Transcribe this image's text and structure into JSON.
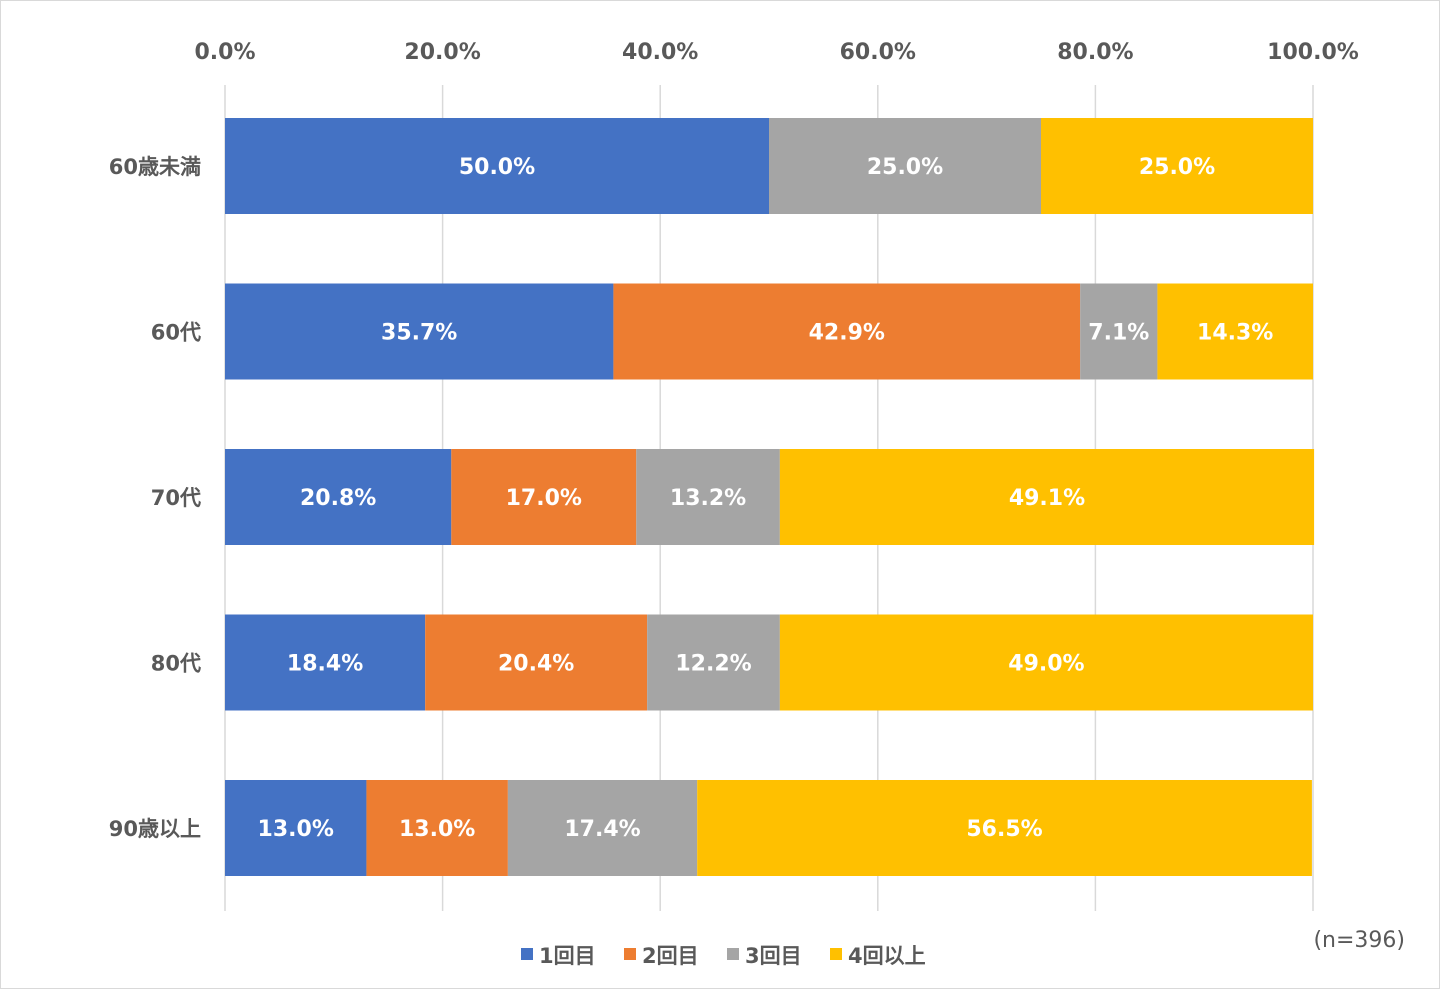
{
  "chart_data": {
    "type": "bar",
    "orientation": "horizontal",
    "stacked": true,
    "categories": [
      "60歳未満",
      "60代",
      "70代",
      "80代",
      "90歳以上"
    ],
    "series": [
      {
        "name": "1回目",
        "color": "#4472C4",
        "values": [
          50.0,
          35.7,
          20.8,
          18.4,
          13.0
        ],
        "labels": [
          "50.0%",
          "35.7%",
          "20.8%",
          "18.4%",
          "13.0%"
        ]
      },
      {
        "name": "2回目",
        "color": "#ED7D31",
        "values": [
          0,
          42.9,
          17.0,
          20.4,
          13.0
        ],
        "labels": [
          "",
          "42.9%",
          "17.0%",
          "20.4%",
          "13.0%"
        ]
      },
      {
        "name": "3回目",
        "color": "#A5A5A5",
        "values": [
          25.0,
          7.1,
          13.2,
          12.2,
          17.4
        ],
        "labels": [
          "25.0%",
          "7.1%",
          "13.2%",
          "12.2%",
          "17.4%"
        ]
      },
      {
        "name": "4回以上",
        "color": "#FFC000",
        "values": [
          25.0,
          14.3,
          49.1,
          49.0,
          56.5
        ],
        "labels": [
          "25.0%",
          "14.3%",
          "49.1%",
          "49.0%",
          "56.5%"
        ]
      }
    ],
    "xlim": [
      0,
      100
    ],
    "x_ticks": [
      "0.0%",
      "20.0%",
      "40.0%",
      "60.0%",
      "80.0%",
      "100.0%"
    ],
    "x_axis_position": "top",
    "grid": true,
    "legend": "bottom",
    "title": "",
    "xlabel": "",
    "ylabel": ""
  },
  "note": "(n=396)"
}
